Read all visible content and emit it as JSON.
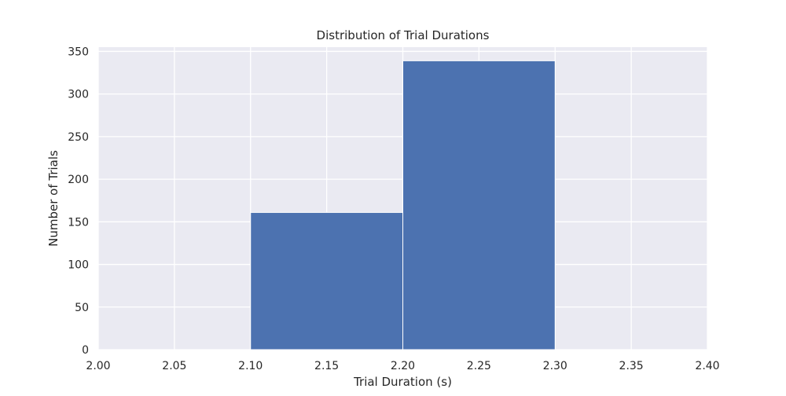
{
  "chart_data": {
    "type": "bar",
    "title": "Distribution of Trial Durations",
    "xlabel": "Trial Duration (s)",
    "ylabel": "Number of Trials",
    "xlim": [
      2.0,
      2.4
    ],
    "ylim": [
      0,
      355
    ],
    "x_ticks": [
      "2.00",
      "2.05",
      "2.10",
      "2.15",
      "2.20",
      "2.25",
      "2.30",
      "2.35",
      "2.40"
    ],
    "y_ticks": [
      "0",
      "50",
      "100",
      "150",
      "200",
      "250",
      "300",
      "350"
    ],
    "bins": [
      {
        "start": 2.1,
        "end": 2.2,
        "count": 161
      },
      {
        "start": 2.2,
        "end": 2.3,
        "count": 339
      }
    ],
    "grid": true,
    "colors": {
      "background": "#eaeaf2",
      "bar": "#4c72b0",
      "grid": "#ffffff"
    }
  }
}
